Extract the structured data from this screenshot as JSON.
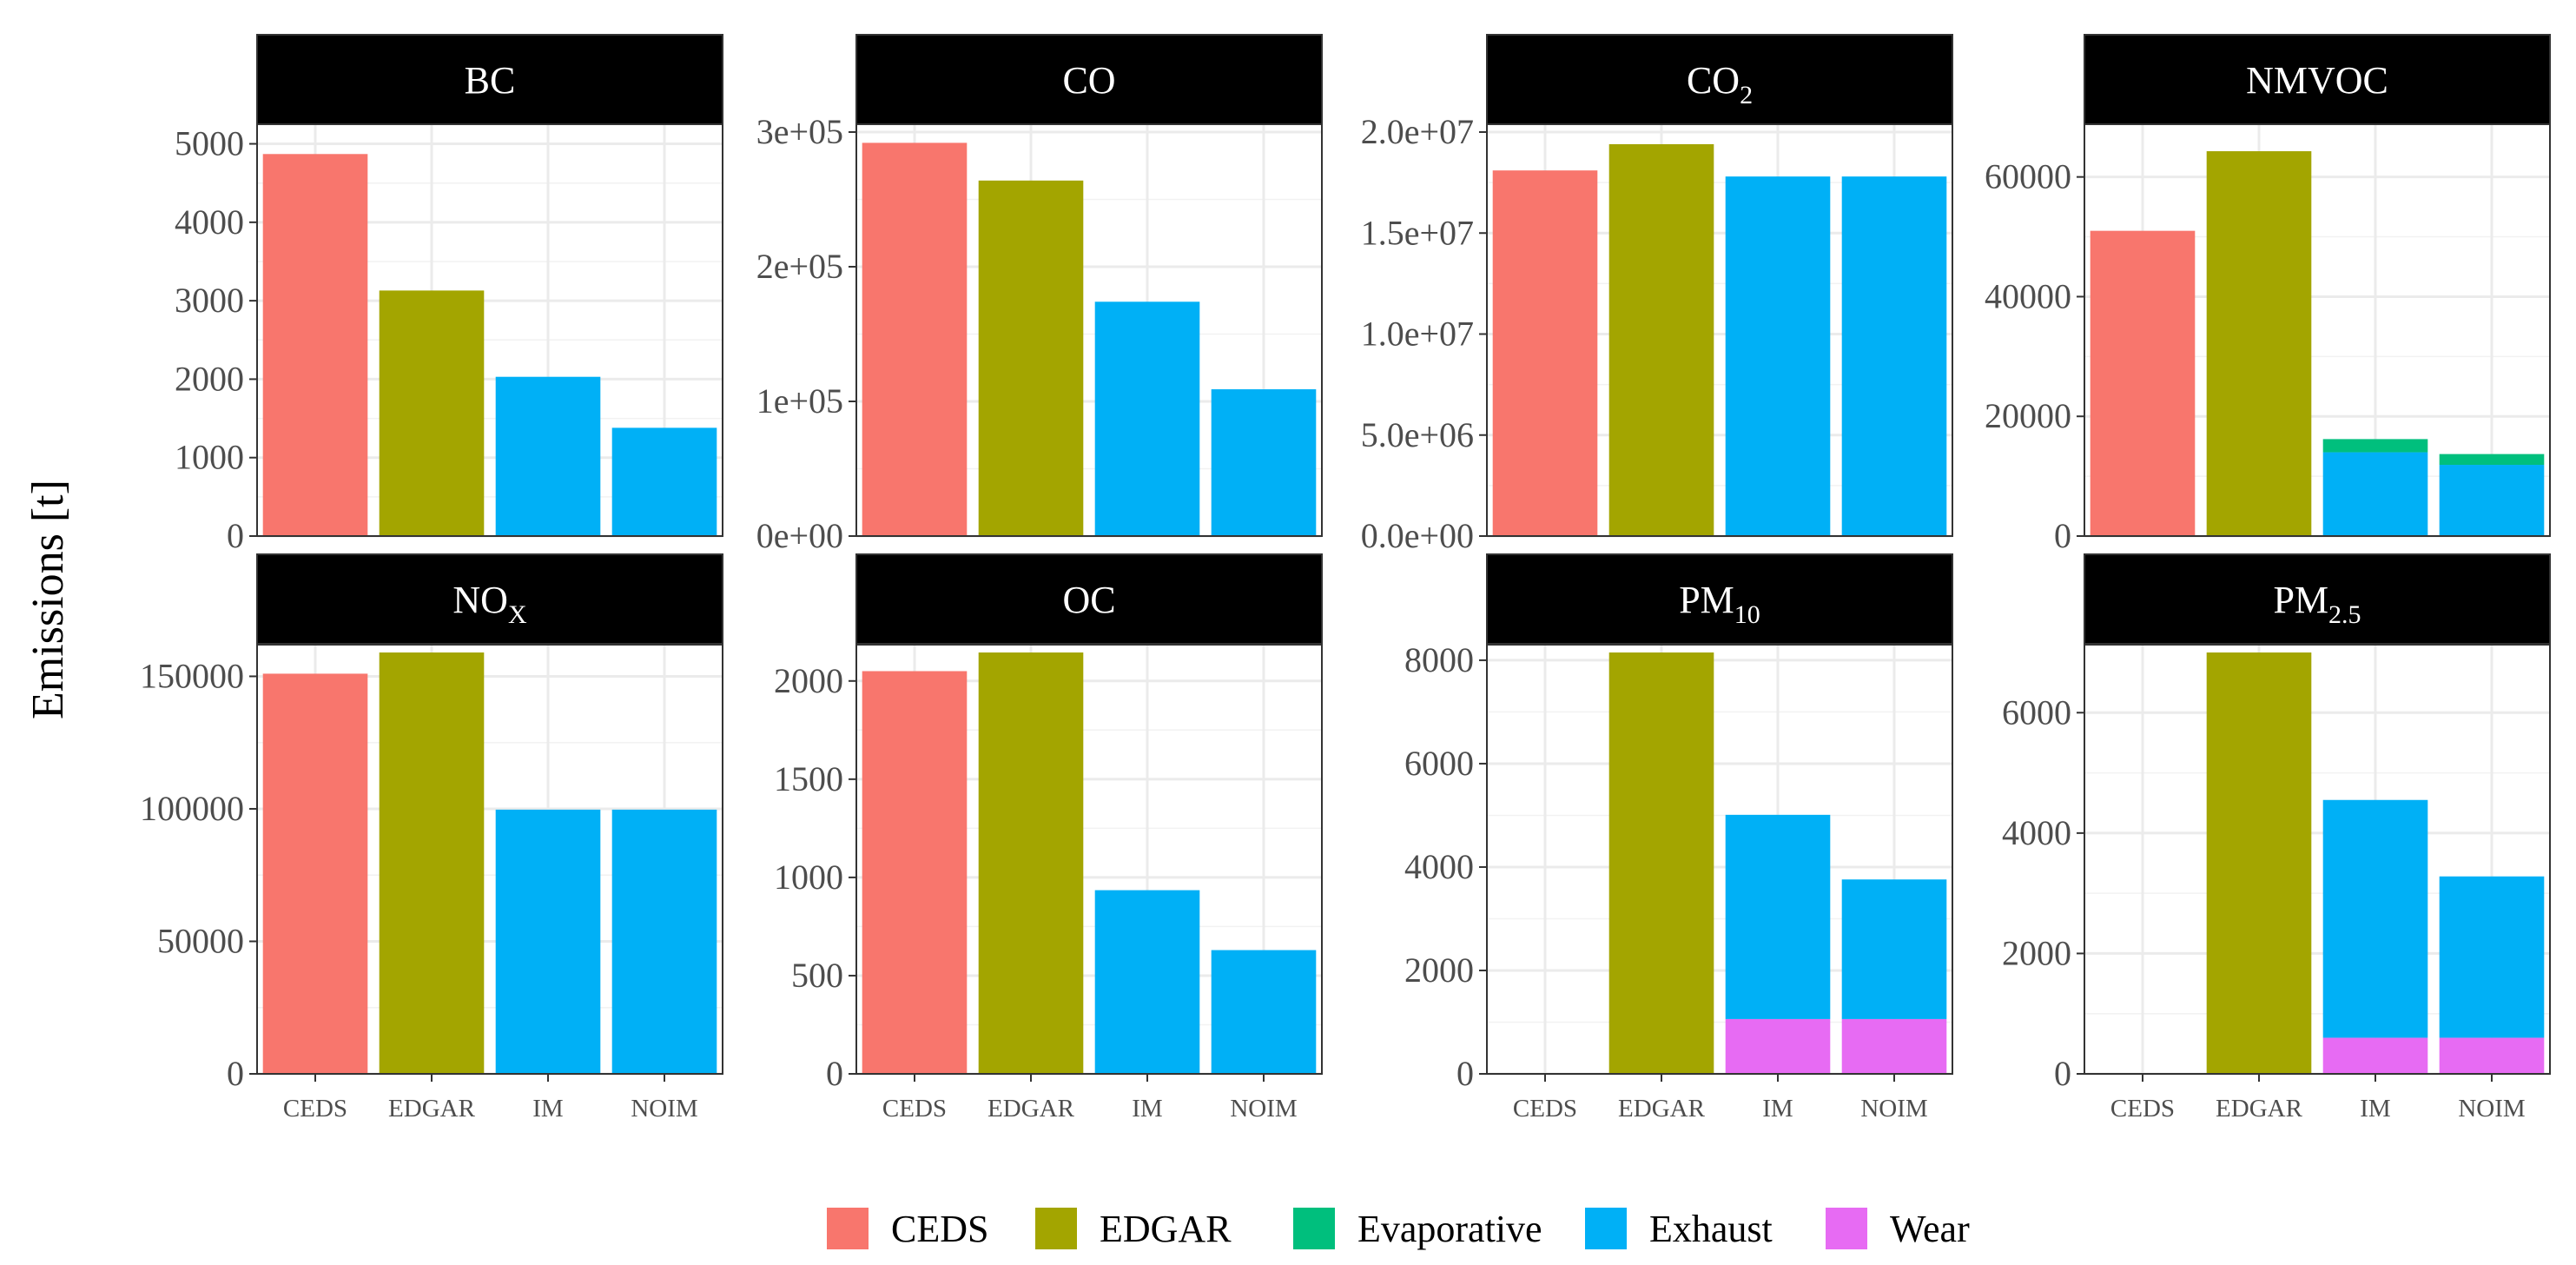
{
  "chart_data": {
    "type": "bar",
    "stacked": true,
    "facet_layout": "4 columns x 2 rows, free y scales",
    "ylabel": "Emissions [t]",
    "categories": [
      "CEDS",
      "EDGAR",
      "IM",
      "NOIM"
    ],
    "legend": {
      "position": "bottom",
      "entries": [
        {
          "name": "CEDS",
          "color": "#F8766D"
        },
        {
          "name": "EDGAR",
          "color": "#A3A500"
        },
        {
          "name": "Evaporative",
          "color": "#00BF7D"
        },
        {
          "name": "Exhaust",
          "color": "#00B0F6"
        },
        {
          "name": "Wear",
          "color": "#E76BF3"
        }
      ]
    },
    "panels": [
      {
        "title": "BC",
        "title_sub": "",
        "ylim": [
          0,
          5150
        ],
        "yticks": [
          0,
          1000,
          2000,
          3000,
          4000,
          5000
        ],
        "ytick_labels": [
          "0",
          "1000",
          "2000",
          "3000",
          "4000",
          "5000"
        ],
        "series": [
          {
            "name": "CEDS",
            "values": [
              4870,
              0,
              0,
              0
            ]
          },
          {
            "name": "EDGAR",
            "values": [
              0,
              3130,
              0,
              0
            ]
          },
          {
            "name": "Exhaust",
            "values": [
              0,
              0,
              2030,
              1380
            ]
          }
        ]
      },
      {
        "title": "CO",
        "title_sub": "",
        "ylim": [
          0,
          300000
        ],
        "yticks": [
          0,
          100000,
          200000,
          300000
        ],
        "ytick_labels": [
          "0e+00",
          "1e+05",
          "2e+05",
          "3e+05"
        ],
        "series": [
          {
            "name": "CEDS",
            "values": [
              292000,
              0,
              0,
              0
            ]
          },
          {
            "name": "EDGAR",
            "values": [
              0,
              264000,
              0,
              0
            ]
          },
          {
            "name": "Exhaust",
            "values": [
              0,
              0,
              174000,
              109000
            ]
          }
        ]
      },
      {
        "title": "CO",
        "title_sub": "2",
        "ylim": [
          0,
          20000000
        ],
        "yticks": [
          0,
          5000000,
          10000000,
          15000000,
          20000000
        ],
        "ytick_labels": [
          "0.0e+00",
          "5.0e+06",
          "1.0e+07",
          "1.5e+07",
          "2.0e+07"
        ],
        "series": [
          {
            "name": "CEDS",
            "values": [
              18100000,
              0,
              0,
              0
            ]
          },
          {
            "name": "EDGAR",
            "values": [
              0,
              19400000,
              0,
              0
            ]
          },
          {
            "name": "Exhaust",
            "values": [
              0,
              0,
              17800000,
              17800000
            ]
          }
        ]
      },
      {
        "title": "NMVOC",
        "title_sub": "",
        "ylim": [
          0,
          67500
        ],
        "yticks": [
          0,
          20000,
          40000,
          60000
        ],
        "ytick_labels": [
          "0",
          "20000",
          "40000",
          "60000"
        ],
        "series": [
          {
            "name": "CEDS",
            "values": [
              51000,
              0,
              0,
              0
            ]
          },
          {
            "name": "EDGAR",
            "values": [
              0,
              64300,
              0,
              0
            ]
          },
          {
            "name": "Exhaust",
            "values": [
              0,
              0,
              14000,
              11900
            ]
          },
          {
            "name": "Evaporative",
            "values": [
              0,
              0,
              2200,
              1800
            ]
          }
        ]
      },
      {
        "title": "NO",
        "title_sub": "X",
        "ylim": [
          0,
          159000
        ],
        "yticks": [
          0,
          50000,
          100000,
          150000
        ],
        "ytick_labels": [
          "0",
          "50000",
          "100000",
          "150000"
        ],
        "series": [
          {
            "name": "CEDS",
            "values": [
              151000,
              0,
              0,
              0
            ]
          },
          {
            "name": "EDGAR",
            "values": [
              0,
              159000,
              0,
              0
            ]
          },
          {
            "name": "Exhaust",
            "values": [
              0,
              0,
              99700,
              99700
            ]
          }
        ]
      },
      {
        "title": "OC",
        "title_sub": "",
        "ylim": [
          0,
          2145
        ],
        "yticks": [
          0,
          500,
          1000,
          1500,
          2000
        ],
        "ytick_labels": [
          "0",
          "500",
          "1000",
          "1500",
          "2000"
        ],
        "series": [
          {
            "name": "CEDS",
            "values": [
              2050,
              0,
              0,
              0
            ]
          },
          {
            "name": "EDGAR",
            "values": [
              0,
              2145,
              0,
              0
            ]
          },
          {
            "name": "Exhaust",
            "values": [
              0,
              0,
              935,
              630
            ]
          }
        ]
      },
      {
        "title": "PM",
        "title_sub": "10",
        "ylim": [
          0,
          8150
        ],
        "yticks": [
          0,
          2000,
          4000,
          6000,
          8000
        ],
        "ytick_labels": [
          "0",
          "2000",
          "4000",
          "6000",
          "8000"
        ],
        "series": [
          {
            "name": "EDGAR",
            "values": [
              0,
              8150,
              0,
              0
            ]
          },
          {
            "name": "Wear",
            "values": [
              0,
              0,
              1060,
              1060
            ]
          },
          {
            "name": "Exhaust",
            "values": [
              0,
              0,
              3950,
              2700
            ]
          }
        ]
      },
      {
        "title": "PM",
        "title_sub": "2.5",
        "ylim": [
          0,
          7000
        ],
        "yticks": [
          0,
          2000,
          4000,
          6000
        ],
        "ytick_labels": [
          "0",
          "2000",
          "4000",
          "6000"
        ],
        "series": [
          {
            "name": "EDGAR",
            "values": [
              0,
              7000,
              0,
              0
            ]
          },
          {
            "name": "Wear",
            "values": [
              0,
              0,
              600,
              600
            ]
          },
          {
            "name": "Exhaust",
            "values": [
              0,
              0,
              3950,
              2680
            ]
          }
        ]
      }
    ]
  }
}
